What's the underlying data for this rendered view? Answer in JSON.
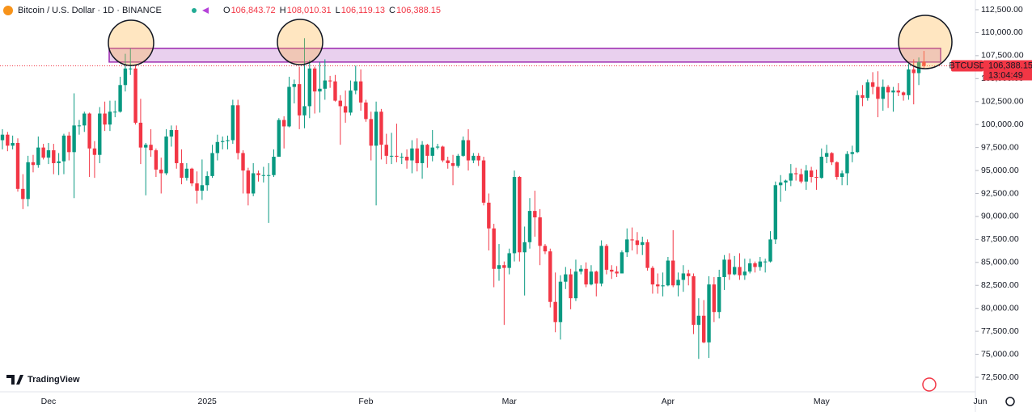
{
  "chart_data": {
    "type": "candlestick",
    "legend": {
      "symbol": "Bitcoin / U.S. Dollar · 1D · BINANCE",
      "ohlc": [
        {
          "key": "O",
          "value": "106,843.72"
        },
        {
          "key": "H",
          "value": "108,010.31"
        },
        {
          "key": "L",
          "value": "106,119.13"
        },
        {
          "key": "C",
          "value": "106,388.15"
        }
      ]
    },
    "last_tag": {
      "symbol": "BTCUSD",
      "price": "106,388.15",
      "countdown": "13:04:49"
    },
    "brand": "TradingView",
    "up_color": "#089981",
    "down_color": "#f23645",
    "zone": {
      "low": 106800,
      "high": 108300,
      "color": "#9c27b0"
    },
    "grid": false,
    "ylim": [
      72500,
      112500
    ],
    "yticks": [
      {
        "value": 72500,
        "label": "72,500.00"
      },
      {
        "value": 75000,
        "label": "75,000.00"
      },
      {
        "value": 77500,
        "label": "77,500.00"
      },
      {
        "value": 80000,
        "label": "80,000.00"
      },
      {
        "value": 82500,
        "label": "82,500.00"
      },
      {
        "value": 85000,
        "label": "85,000.00"
      },
      {
        "value": 87500,
        "label": "87,500.00"
      },
      {
        "value": 90000,
        "label": "90,000.00"
      },
      {
        "value": 92500,
        "label": "92,500.00"
      },
      {
        "value": 95000,
        "label": "95,000.00"
      },
      {
        "value": 97500,
        "label": "97,500.00"
      },
      {
        "value": 100000,
        "label": "100,000.00"
      },
      {
        "value": 102500,
        "label": "102,500.00"
      },
      {
        "value": 105000,
        "label": "105,000.00"
      },
      {
        "value": 107500,
        "label": "107,500.00"
      },
      {
        "value": 110000,
        "label": "110,000.00"
      },
      {
        "value": 112500,
        "label": "112,500.00"
      }
    ],
    "categories": [
      null,
      null,
      null,
      null,
      null,
      null,
      null,
      null,
      null,
      "Dec",
      null,
      null,
      null,
      null,
      null,
      null,
      null,
      null,
      null,
      null,
      null,
      null,
      null,
      null,
      null,
      null,
      null,
      null,
      null,
      null,
      null,
      null,
      null,
      null,
      null,
      null,
      null,
      null,
      null,
      null,
      "2025",
      null,
      null,
      null,
      null,
      null,
      null,
      null,
      null,
      null,
      null,
      null,
      null,
      null,
      null,
      null,
      null,
      null,
      null,
      null,
      null,
      null,
      null,
      null,
      null,
      null,
      null,
      null,
      null,
      null,
      null,
      "Feb",
      null,
      null,
      null,
      null,
      null,
      null,
      null,
      null,
      null,
      null,
      null,
      null,
      null,
      null,
      null,
      null,
      null,
      null,
      null,
      null,
      null,
      null,
      null,
      null,
      null,
      null,
      null,
      "Mar",
      null,
      null,
      null,
      null,
      null,
      null,
      null,
      null,
      null,
      null,
      null,
      null,
      null,
      null,
      null,
      null,
      null,
      null,
      null,
      null,
      null,
      null,
      null,
      null,
      null,
      null,
      null,
      null,
      null,
      null,
      "Apr",
      null,
      null,
      null,
      null,
      null,
      null,
      null,
      null,
      null,
      null,
      null,
      null,
      null,
      null,
      null,
      null,
      null,
      null,
      null,
      null,
      null,
      null,
      null,
      null,
      null,
      null,
      null,
      null,
      null,
      "May",
      null,
      null,
      null,
      null,
      null,
      null,
      null,
      null,
      null,
      null,
      null,
      null,
      null,
      null,
      null,
      null,
      null,
      null,
      null,
      null,
      null,
      null,
      null,
      null,
      null,
      null,
      null,
      null,
      null,
      null,
      "Jun"
    ],
    "open": [
      98300,
      98900,
      97700,
      98000,
      93000,
      91900,
      95900,
      95600,
      97500,
      96400,
      97200,
      95800,
      96000,
      98800,
      97000,
      99900,
      99900,
      101200,
      97400,
      96700,
      101200,
      100000,
      101400,
      101400,
      104300,
      106100,
      106100,
      100200,
      97500,
      97800,
      97200,
      95100,
      94700,
      98700,
      99400,
      95800,
      94200,
      95200,
      93600,
      92800,
      93400,
      94400,
      96900,
      98100,
      98200,
      98300,
      102100,
      96900,
      95000,
      92500,
      94700,
      94500,
      94500,
      94500,
      96500,
      100500,
      99800,
      104100,
      104400,
      101000,
      102000,
      106100,
      103600,
      103900,
      104800,
      104700,
      102600,
      102000,
      101300,
      103700,
      104700,
      102400,
      100600,
      97700,
      101400,
      97800,
      96600,
      96600,
      96500,
      96500,
      96100,
      97400,
      95800,
      97800,
      96600,
      97500,
      97600,
      96100,
      95800,
      95500,
      96600,
      98300,
      96100,
      96600,
      96100,
      91500,
      88700,
      84300,
      84700,
      84400,
      86000,
      94300,
      86100,
      87200,
      90600,
      89900,
      86800,
      86200,
      80700,
      78500,
      82900,
      83700,
      81100,
      84000,
      84300,
      82600,
      84000,
      82700,
      86800,
      84200,
      84000,
      83800,
      86100,
      87500,
      87400,
      86900,
      87200,
      84400,
      82600,
      82400,
      82500,
      85200,
      82500,
      83100,
      83800,
      83500,
      78200,
      79200,
      76300,
      82600,
      79600,
      83400,
      85300,
      83700,
      84500,
      83600,
      84000,
      84900,
      84500,
      85100,
      85100,
      87500,
      93400,
      93700,
      93900,
      94700,
      94600,
      93800,
      95000,
      94300,
      94200,
      96500,
      96900,
      95900,
      94300,
      94700,
      96800,
      97000,
      103200,
      102900,
      104600,
      104100,
      102800,
      104100,
      103500,
      103700,
      103500,
      103200,
      106000,
      105600,
      106843.72,
      null,
      null,
      null,
      null,
      null,
      null,
      null,
      null,
      null,
      null,
      null
    ],
    "high": [
      99500,
      99200,
      98800,
      98500,
      94600,
      96600,
      96700,
      98700,
      97900,
      98000,
      97900,
      96900,
      99000,
      99200,
      103400,
      100500,
      101400,
      101300,
      98200,
      101900,
      102500,
      102600,
      102600,
      105200,
      107700,
      108300,
      106500,
      102800,
      98000,
      99500,
      97400,
      96400,
      99500,
      99900,
      99900,
      97300,
      95800,
      95300,
      94900,
      96200,
      94900,
      97800,
      98900,
      98700,
      98800,
      102700,
      102700,
      97200,
      95300,
      95800,
      95000,
      95400,
      95800,
      97300,
      100700,
      100900,
      105200,
      104900,
      106300,
      109400,
      107000,
      106300,
      106800,
      107100,
      105300,
      105400,
      103200,
      103700,
      104800,
      106400,
      106000,
      102700,
      101400,
      102500,
      101700,
      99000,
      99100,
      100100,
      96900,
      97300,
      98300,
      98500,
      98200,
      97900,
      99400,
      97900,
      97700,
      96500,
      96700,
      96800,
      98700,
      99500,
      96900,
      96900,
      96500,
      92500,
      89200,
      87000,
      85100,
      86500,
      95000,
      94400,
      88900,
      92000,
      92800,
      90800,
      87000,
      86500,
      83900,
      83600,
      84500,
      84300,
      85300,
      84700,
      85000,
      84700,
      84100,
      87400,
      87000,
      84700,
      84600,
      86300,
      88700,
      88800,
      88300,
      87800,
      87500,
      84600,
      83800,
      83900,
      85600,
      88500,
      83900,
      84700,
      84200,
      83800,
      81100,
      80900,
      83500,
      83400,
      84200,
      85800,
      86000,
      85700,
      86000,
      85400,
      85400,
      85100,
      85600,
      85400,
      88400,
      93800,
      94500,
      94000,
      95700,
      95300,
      95200,
      95600,
      95400,
      95100,
      97400,
      97800,
      97000,
      96000,
      95000,
      97100,
      97700,
      103700,
      104300,
      104900,
      105700,
      105800,
      104900,
      104300,
      104100,
      104500,
      103600,
      106600,
      107100,
      107300,
      108010.31,
      null,
      null,
      null,
      null,
      null,
      null,
      null,
      null,
      null,
      null,
      null
    ],
    "low": [
      97300,
      97100,
      97300,
      92700,
      90800,
      91100,
      94800,
      95300,
      96200,
      95700,
      94600,
      94500,
      94600,
      96100,
      92000,
      98900,
      99200,
      94300,
      94200,
      95800,
      99300,
      99300,
      100800,
      101300,
      103600,
      105400,
      100000,
      95700,
      92300,
      96500,
      94300,
      92500,
      94500,
      97600,
      95200,
      93500,
      93900,
      93300,
      91400,
      91800,
      92800,
      94200,
      96100,
      97300,
      97300,
      97900,
      96200,
      92500,
      91200,
      92200,
      93800,
      93700,
      89300,
      94300,
      96500,
      97400,
      99700,
      102300,
      99500,
      99600,
      100700,
      101200,
      101300,
      102700,
      104000,
      102500,
      97800,
      100200,
      101000,
      103300,
      101500,
      100300,
      96100,
      91200,
      96200,
      95700,
      95700,
      95900,
      95700,
      95200,
      94700,
      94900,
      94100,
      95300,
      96000,
      97300,
      95900,
      95200,
      93400,
      95300,
      96500,
      95000,
      95800,
      95500,
      91200,
      86300,
      82300,
      83000,
      78200,
      83700,
      85100,
      85100,
      81400,
      86500,
      87800,
      84700,
      85900,
      80100,
      77400,
      76600,
      82100,
      79900,
      80800,
      83700,
      82300,
      82500,
      81300,
      82400,
      83700,
      83200,
      83400,
      83800,
      85600,
      86300,
      85900,
      85800,
      84100,
      81600,
      81600,
      81300,
      82400,
      82300,
      81300,
      81800,
      82500,
      77200,
      74500,
      76200,
      74600,
      78500,
      78900,
      82000,
      83100,
      83600,
      83100,
      83100,
      83800,
      83900,
      84100,
      83900,
      85000,
      87000,
      91600,
      92800,
      93300,
      93900,
      93600,
      92900,
      93700,
      92900,
      94100,
      95800,
      95600,
      94000,
      93400,
      93400,
      95900,
      96900,
      102000,
      102600,
      103300,
      100800,
      101500,
      101800,
      101400,
      103100,
      102600,
      102700,
      102200,
      104300,
      106119.13,
      null,
      null,
      null,
      null,
      null,
      null,
      null,
      null,
      null,
      null,
      null
    ],
    "close": [
      98900,
      97700,
      98000,
      93000,
      91900,
      95900,
      95600,
      97500,
      96400,
      97200,
      95800,
      96000,
      98800,
      97000,
      99900,
      99900,
      101200,
      97400,
      96700,
      101200,
      100000,
      101400,
      101400,
      104300,
      106100,
      106100,
      100200,
      97500,
      97800,
      97200,
      95100,
      94700,
      98700,
      99400,
      95800,
      94200,
      95200,
      93600,
      92800,
      93400,
      94400,
      96900,
      98100,
      98200,
      98300,
      102100,
      96900,
      95000,
      92500,
      94700,
      94500,
      94500,
      94500,
      96500,
      100500,
      99800,
      104100,
      104400,
      101000,
      102000,
      106100,
      103600,
      103900,
      104800,
      104700,
      102600,
      102000,
      101300,
      103700,
      104700,
      102400,
      100600,
      97700,
      101400,
      97800,
      96600,
      96600,
      96500,
      96500,
      96100,
      97400,
      95800,
      97800,
      96600,
      97500,
      97600,
      96100,
      95800,
      95500,
      96600,
      98300,
      96100,
      96600,
      96100,
      91500,
      88700,
      84300,
      84700,
      84400,
      86000,
      94300,
      86100,
      87200,
      90600,
      89900,
      86800,
      86200,
      80700,
      78500,
      82900,
      83700,
      81100,
      84000,
      84300,
      82600,
      84000,
      82700,
      86800,
      84200,
      84000,
      83800,
      86100,
      87500,
      87400,
      86900,
      87200,
      84400,
      82600,
      82400,
      82500,
      85200,
      82500,
      83100,
      83800,
      83500,
      78200,
      79200,
      76300,
      82600,
      79600,
      83400,
      85300,
      83700,
      84500,
      83600,
      84000,
      84900,
      84500,
      85100,
      85100,
      87500,
      93400,
      93700,
      93900,
      94700,
      94600,
      93800,
      95000,
      94300,
      94200,
      96500,
      96900,
      95900,
      94300,
      94700,
      96800,
      97000,
      103200,
      102900,
      104600,
      104100,
      102800,
      104100,
      103500,
      103700,
      103500,
      103200,
      106000,
      105600,
      106800,
      106388.15,
      null,
      null,
      null,
      null,
      null,
      null,
      null,
      null,
      null,
      null,
      null
    ]
  }
}
